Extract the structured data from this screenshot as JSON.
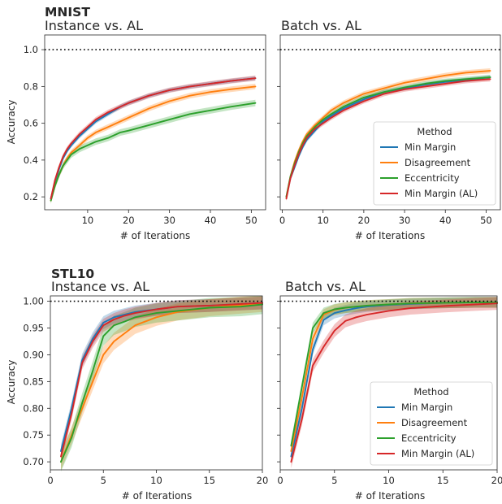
{
  "chart_data": [
    {
      "type": "line",
      "group_title": "MNIST",
      "title": "Instance vs. AL",
      "xlabel": "# of Iterations",
      "ylabel": "Accuracy",
      "xlim": [
        -0.5,
        53.5
      ],
      "ylim": [
        0.13,
        1.08
      ],
      "xticks": [
        "10",
        "20",
        "30",
        "40",
        "50"
      ],
      "xtick_values": [
        10,
        20,
        30,
        40,
        50
      ],
      "yticks": [
        "0.2",
        "0.4",
        "0.6",
        "0.8",
        "1.0"
      ],
      "ytick_values": [
        0.2,
        0.4,
        0.6,
        0.8,
        1.0
      ],
      "reference_line": 1.0,
      "show_y_ticklabels": true,
      "legend": null,
      "series": [
        {
          "name": "Min Margin",
          "color": "#1f77b4",
          "band": 0.012,
          "x": [
            1,
            2,
            3,
            4,
            5,
            6,
            8,
            10,
            12,
            15,
            18,
            20,
            25,
            30,
            35,
            40,
            45,
            51
          ],
          "y": [
            0.19,
            0.28,
            0.35,
            0.41,
            0.45,
            0.48,
            0.53,
            0.57,
            0.61,
            0.65,
            0.69,
            0.71,
            0.75,
            0.78,
            0.8,
            0.815,
            0.83,
            0.845
          ]
        },
        {
          "name": "Disagreement",
          "color": "#ff7f0e",
          "band": 0.015,
          "x": [
            1,
            2,
            3,
            4,
            5,
            6,
            8,
            10,
            12,
            15,
            18,
            20,
            25,
            30,
            35,
            40,
            45,
            51
          ],
          "y": [
            0.18,
            0.26,
            0.32,
            0.37,
            0.41,
            0.44,
            0.48,
            0.52,
            0.55,
            0.58,
            0.61,
            0.63,
            0.68,
            0.72,
            0.75,
            0.77,
            0.785,
            0.8
          ]
        },
        {
          "name": "Eccentricity",
          "color": "#2ca02c",
          "band": 0.018,
          "x": [
            1,
            2,
            3,
            4,
            5,
            6,
            8,
            10,
            12,
            15,
            18,
            20,
            25,
            30,
            35,
            40,
            45,
            51
          ],
          "y": [
            0.18,
            0.26,
            0.32,
            0.37,
            0.4,
            0.43,
            0.46,
            0.48,
            0.5,
            0.52,
            0.55,
            0.56,
            0.59,
            0.62,
            0.65,
            0.67,
            0.69,
            0.71
          ]
        },
        {
          "name": "Min Margin (AL)",
          "color": "#d62728",
          "band": 0.014,
          "x": [
            1,
            2,
            3,
            4,
            5,
            6,
            8,
            10,
            12,
            15,
            18,
            20,
            25,
            30,
            35,
            40,
            45,
            51
          ],
          "y": [
            0.19,
            0.29,
            0.36,
            0.42,
            0.46,
            0.49,
            0.54,
            0.58,
            0.62,
            0.66,
            0.69,
            0.71,
            0.75,
            0.78,
            0.8,
            0.815,
            0.83,
            0.845
          ]
        }
      ]
    },
    {
      "type": "line",
      "title": "Batch vs. AL",
      "xlabel": "# of Iterations",
      "ylabel": "",
      "xlim": [
        -0.5,
        53.5
      ],
      "ylim": [
        0.13,
        1.08
      ],
      "xticks": [
        "0",
        "10",
        "20",
        "30",
        "40",
        "50"
      ],
      "xtick_values": [
        0,
        10,
        20,
        30,
        40,
        50
      ],
      "yticks": [],
      "ytick_values": [
        0.2,
        0.4,
        0.6,
        0.8,
        1.0
      ],
      "reference_line": 1.0,
      "show_y_ticklabels": false,
      "legend": {
        "title": "Method",
        "placement": "lower-right"
      },
      "series": [
        {
          "name": "Min Margin",
          "color": "#1f77b4",
          "band": 0.012,
          "x": [
            1,
            2,
            3,
            4,
            5,
            6,
            8,
            10,
            12,
            15,
            18,
            20,
            25,
            30,
            35,
            40,
            45,
            51
          ],
          "y": [
            0.2,
            0.3,
            0.36,
            0.42,
            0.47,
            0.51,
            0.56,
            0.61,
            0.64,
            0.68,
            0.71,
            0.73,
            0.77,
            0.79,
            0.81,
            0.825,
            0.835,
            0.85
          ]
        },
        {
          "name": "Disagreement",
          "color": "#ff7f0e",
          "band": 0.014,
          "x": [
            1,
            2,
            3,
            4,
            5,
            6,
            8,
            10,
            12,
            15,
            18,
            20,
            25,
            30,
            35,
            40,
            45,
            51
          ],
          "y": [
            0.2,
            0.31,
            0.39,
            0.45,
            0.5,
            0.54,
            0.59,
            0.63,
            0.67,
            0.71,
            0.74,
            0.76,
            0.79,
            0.82,
            0.84,
            0.86,
            0.875,
            0.885
          ]
        },
        {
          "name": "Eccentricity",
          "color": "#2ca02c",
          "band": 0.013,
          "x": [
            1,
            2,
            3,
            4,
            5,
            6,
            8,
            10,
            12,
            15,
            18,
            20,
            25,
            30,
            35,
            40,
            45,
            51
          ],
          "y": [
            0.2,
            0.31,
            0.38,
            0.44,
            0.49,
            0.53,
            0.58,
            0.62,
            0.65,
            0.69,
            0.72,
            0.74,
            0.77,
            0.795,
            0.815,
            0.83,
            0.84,
            0.85
          ]
        },
        {
          "name": "Min Margin (AL)",
          "color": "#d62728",
          "band": 0.013,
          "x": [
            1,
            2,
            3,
            4,
            5,
            6,
            8,
            10,
            12,
            15,
            18,
            20,
            25,
            30,
            35,
            40,
            45,
            51
          ],
          "y": [
            0.19,
            0.3,
            0.37,
            0.43,
            0.48,
            0.52,
            0.57,
            0.6,
            0.63,
            0.67,
            0.7,
            0.72,
            0.76,
            0.785,
            0.8,
            0.815,
            0.83,
            0.84
          ]
        }
      ]
    },
    {
      "type": "line",
      "group_title": "STL10",
      "title": "Instance vs. AL",
      "xlabel": "# of Iterations",
      "ylabel": "Accuracy",
      "xlim": [
        0,
        20
      ],
      "ylim": [
        0.685,
        1.01
      ],
      "xticks": [
        "0",
        "5",
        "10",
        "15",
        "20"
      ],
      "xtick_values": [
        0,
        5,
        10,
        15,
        20
      ],
      "yticks": [
        "0.70",
        "0.75",
        "0.80",
        "0.85",
        "0.90",
        "0.95",
        "1.00"
      ],
      "ytick_values": [
        0.7,
        0.75,
        0.8,
        0.85,
        0.9,
        0.95,
        1.0
      ],
      "reference_line": 1.0,
      "show_y_ticklabels": true,
      "legend": null,
      "series": [
        {
          "name": "Min Margin",
          "color": "#1f77b4",
          "band": 0.012,
          "x": [
            1,
            2,
            3,
            4,
            5,
            6,
            7,
            8,
            10,
            12,
            15,
            18,
            20
          ],
          "y": [
            0.72,
            0.8,
            0.89,
            0.93,
            0.96,
            0.97,
            0.975,
            0.98,
            0.985,
            0.99,
            0.992,
            0.995,
            0.997
          ]
        },
        {
          "name": "Disagreement",
          "color": "#ff7f0e",
          "band": 0.016,
          "x": [
            1,
            2,
            3,
            4,
            5,
            6,
            7,
            8,
            10,
            12,
            15,
            18,
            20
          ],
          "y": [
            0.7,
            0.75,
            0.8,
            0.85,
            0.9,
            0.925,
            0.94,
            0.955,
            0.97,
            0.98,
            0.988,
            0.993,
            0.996
          ]
        },
        {
          "name": "Eccentricity",
          "color": "#2ca02c",
          "band": 0.018,
          "x": [
            1,
            2,
            3,
            4,
            5,
            6,
            7,
            8,
            10,
            12,
            15,
            18,
            20
          ],
          "y": [
            0.7,
            0.745,
            0.81,
            0.87,
            0.935,
            0.955,
            0.962,
            0.97,
            0.978,
            0.982,
            0.988,
            0.99,
            0.994
          ]
        },
        {
          "name": "Min Margin (AL)",
          "color": "#d62728",
          "band": 0.012,
          "x": [
            1,
            2,
            3,
            4,
            5,
            6,
            7,
            8,
            10,
            12,
            15,
            18,
            20
          ],
          "y": [
            0.71,
            0.79,
            0.885,
            0.925,
            0.955,
            0.966,
            0.973,
            0.978,
            0.985,
            0.99,
            0.992,
            0.995,
            0.997
          ]
        }
      ]
    },
    {
      "type": "line",
      "title": "Batch vs. AL",
      "xlabel": "# of Iterations",
      "ylabel": "",
      "xlim": [
        0,
        20
      ],
      "ylim": [
        0.685,
        1.01
      ],
      "xticks": [
        "0",
        "5",
        "10",
        "15",
        "20"
      ],
      "xtick_values": [
        0,
        5,
        10,
        15,
        20
      ],
      "yticks": [],
      "ytick_values": [
        0.7,
        0.75,
        0.8,
        0.85,
        0.9,
        0.95,
        1.0
      ],
      "reference_line": 1.0,
      "show_y_ticklabels": false,
      "legend": {
        "title": "Method",
        "placement": "lower-right"
      },
      "series": [
        {
          "name": "Min Margin",
          "color": "#1f77b4",
          "band": 0.01,
          "x": [
            1,
            2,
            3,
            4,
            5,
            6,
            7,
            8,
            10,
            12,
            15,
            18,
            20
          ],
          "y": [
            0.71,
            0.8,
            0.91,
            0.965,
            0.978,
            0.983,
            0.987,
            0.99,
            0.993,
            0.995,
            0.997,
            0.998,
            0.998
          ]
        },
        {
          "name": "Disagreement",
          "color": "#ff7f0e",
          "band": 0.01,
          "x": [
            1,
            2,
            3,
            4,
            5,
            6,
            7,
            8,
            10,
            12,
            15,
            18,
            20
          ],
          "y": [
            0.72,
            0.82,
            0.93,
            0.975,
            0.984,
            0.988,
            0.99,
            0.992,
            0.994,
            0.996,
            0.997,
            0.998,
            0.998
          ]
        },
        {
          "name": "Eccentricity",
          "color": "#2ca02c",
          "band": 0.01,
          "x": [
            1,
            2,
            3,
            4,
            5,
            6,
            7,
            8,
            10,
            12,
            15,
            18,
            20
          ],
          "y": [
            0.73,
            0.84,
            0.95,
            0.978,
            0.985,
            0.988,
            0.99,
            0.992,
            0.994,
            0.996,
            0.997,
            0.998,
            0.998
          ]
        },
        {
          "name": "Min Margin (AL)",
          "color": "#d62728",
          "band": 0.012,
          "x": [
            1,
            2,
            3,
            4,
            5,
            6,
            7,
            8,
            10,
            12,
            15,
            18,
            20
          ],
          "y": [
            0.7,
            0.78,
            0.88,
            0.915,
            0.945,
            0.963,
            0.97,
            0.975,
            0.982,
            0.987,
            0.991,
            0.994,
            0.996
          ]
        }
      ]
    }
  ]
}
